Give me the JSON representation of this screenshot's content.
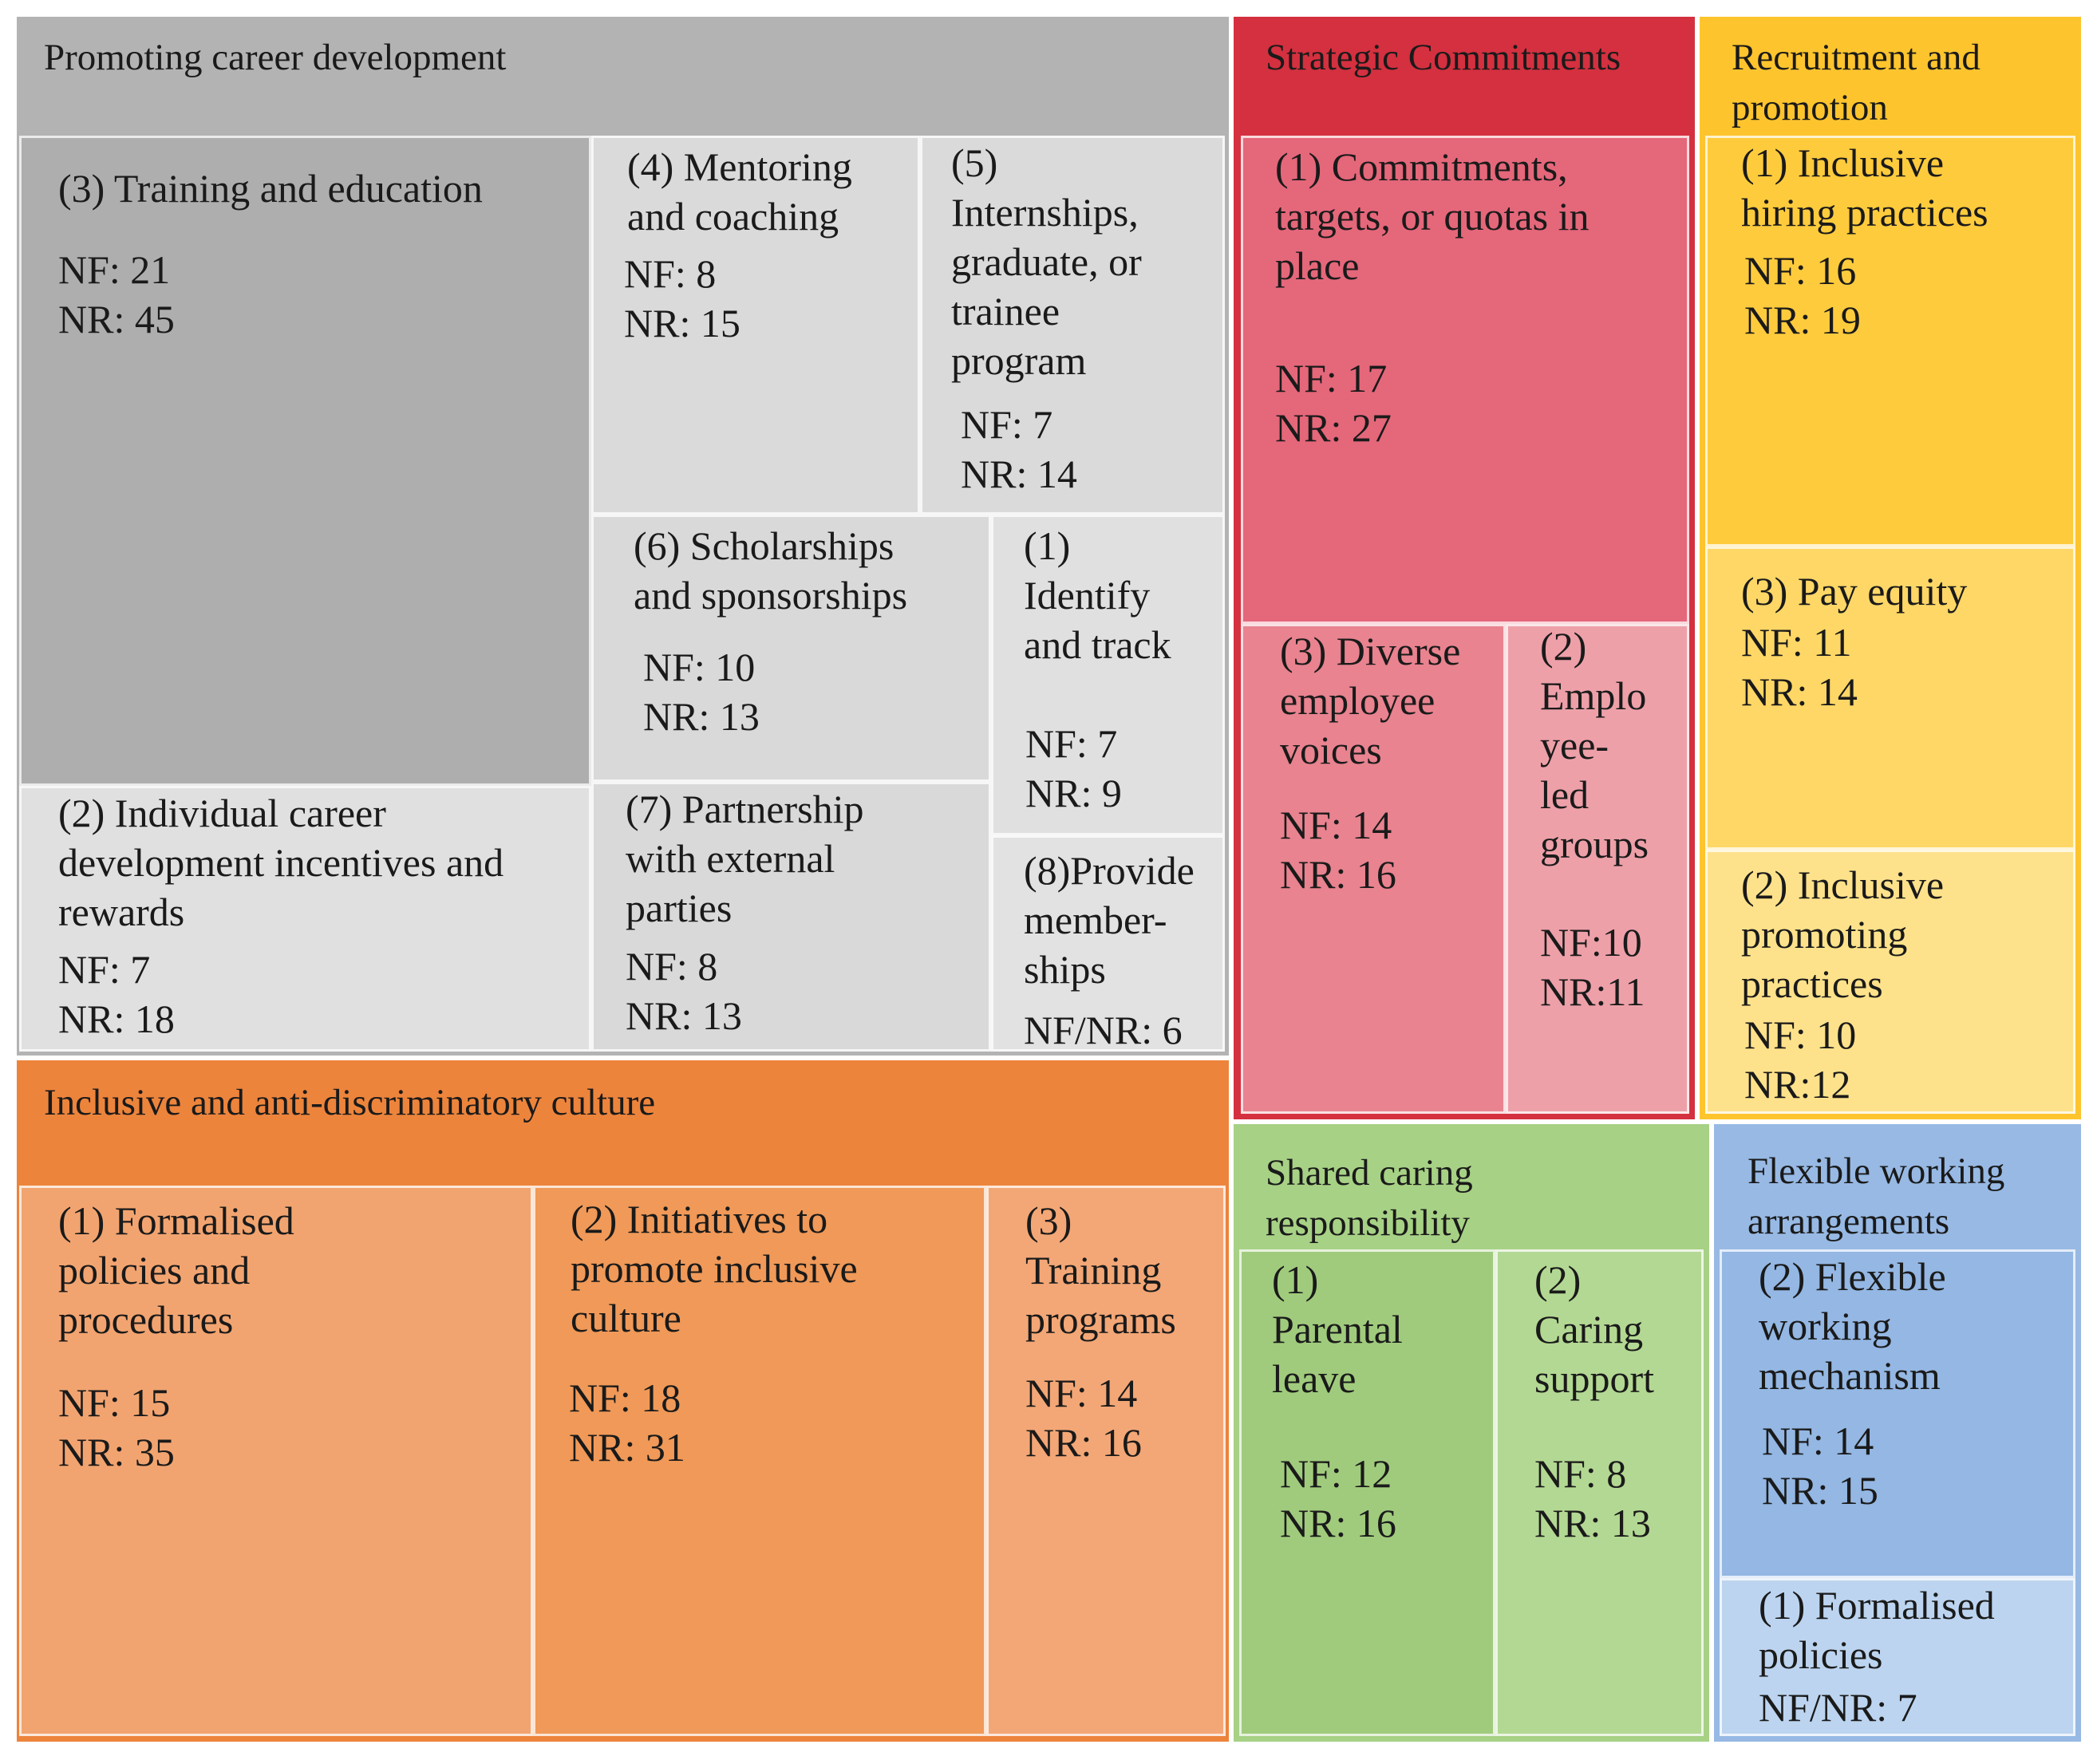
{
  "groups": {
    "career": {
      "title": "Promoting career development",
      "color": "#b3b3b3",
      "cells": {
        "training": {
          "label": "(3) Training and education",
          "nf": "NF: 21",
          "nr": "NR: 45",
          "color": "#aeaeae"
        },
        "mentoring": {
          "label": "(4) Mentoring\nand coaching",
          "nf": "NF: 8",
          "nr": "NR: 15",
          "color": "#dadada"
        },
        "internships": {
          "label": "(5)\nInternships,\ngraduate, or\ntrainee\nprogram",
          "nf": "NF: 7",
          "nr": "NR: 14",
          "color": "#dadada"
        },
        "scholarships": {
          "label": "(6) Scholarships\nand sponsorships",
          "nf": "NF: 10",
          "nr": "NR: 13",
          "color": "#d9d9d9"
        },
        "identify": {
          "label": "(1)\nIdentify\nand track",
          "nf": "NF: 7",
          "nr": "NR: 9",
          "color": "#e0e0e0"
        },
        "individual": {
          "label": "(2) Individual career\ndevelopment incentives and\nrewards",
          "nf": "NF: 7",
          "nr": "NR: 18",
          "color": "#e0e0e0"
        },
        "partnership": {
          "label": "(7) Partnership\nwith external\nparties",
          "nf": "NF: 8",
          "nr": "NR: 13",
          "color": "#d9d9d9"
        },
        "memberships": {
          "label": "(8)Provide\nmember-\nships",
          "nfnr": "NF/NR: 6",
          "color": "#e2e2e2"
        }
      }
    },
    "strategic": {
      "title": "Strategic Commitments",
      "color": "#d4303f",
      "cells": {
        "commitments": {
          "label": "(1) Commitments,\ntargets, or quotas in\nplace",
          "nf": "NF: 17",
          "nr": "NR: 27",
          "color": "#e5677a"
        },
        "diverse": {
          "label": "(3) Diverse\nemployee\nvoices",
          "nf": "NF: 14",
          "nr": "NR: 16",
          "color": "#e8838f"
        },
        "employee_led": {
          "label": "(2)\nEmplo\nyee-\nled\ngroups",
          "nf": "NF:10",
          "nr": "NR:11",
          "color": "#eda0a8"
        }
      }
    },
    "recruitment": {
      "title": "Recruitment and\npromotion",
      "color": "#fdc42d",
      "cells": {
        "hiring": {
          "label": "(1) Inclusive\nhiring practices",
          "nf": "NF: 16",
          "nr": "NR: 19",
          "color": "#fecb3d"
        },
        "pay": {
          "label": "(3) Pay equity",
          "nf": "NF: 11",
          "nr": "NR: 14",
          "color": "#fed766"
        },
        "promoting": {
          "label": "(2) Inclusive\npromoting\npractices",
          "nf": "NF: 10",
          "nr": "NR:12",
          "color": "#fee28b"
        }
      }
    },
    "inclusive": {
      "title": "Inclusive and anti-discriminatory culture",
      "color": "#ed843c",
      "cells": {
        "formalised": {
          "label": "(1) Formalised\npolicies and\nprocedures",
          "nf": "NF: 15",
          "nr": "NR: 35",
          "color": "#f2a470"
        },
        "initiatives": {
          "label": "(2) Initiatives to\npromote inclusive\nculture",
          "nf": "NF: 18",
          "nr": "NR: 31",
          "color": "#f09958"
        },
        "programs": {
          "label": "(3)\nTraining\nprograms",
          "nf": "NF: 14",
          "nr": "NR: 16",
          "color": "#f3a776"
        }
      }
    },
    "caring": {
      "title": "Shared caring\nresponsibility",
      "color": "#a7d185",
      "cells": {
        "parental": {
          "label": "(1)\nParental\nleave",
          "nf": "NF: 12",
          "nr": "NR: 16",
          "color": "#a0cb7d"
        },
        "support": {
          "label": "(2)\nCaring\nsupport",
          "nf": "NF: 8",
          "nr": "NR: 13",
          "color": "#b3d893"
        }
      }
    },
    "flexible": {
      "title": "Flexible working\narrangements",
      "color": "#97b9e4",
      "cells": {
        "mechanism": {
          "label": "(2) Flexible\nworking\nmechanism",
          "nf": "NF: 14",
          "nr": "NR: 15",
          "color": "#94b7e3"
        },
        "policies": {
          "label": "(1) Formalised\npolicies",
          "nfnr": "NF/NR: 7",
          "color": "#bcd4ef"
        }
      }
    }
  }
}
